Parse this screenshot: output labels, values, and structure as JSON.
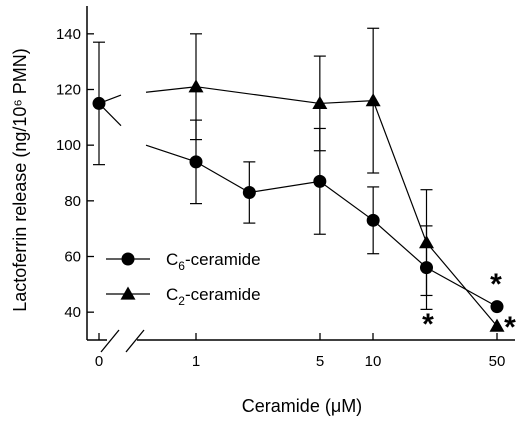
{
  "chart_data": {
    "type": "line",
    "xlabel": "Ceramide (μM)",
    "ylabel": "Lactoferrin release (ng/10⁶ PMN)",
    "x_scale": "broken-log",
    "ylim": [
      30,
      150
    ],
    "x_ticks": [
      "0",
      "1",
      "5",
      "10",
      "50"
    ],
    "y_ticks": [
      40,
      60,
      80,
      100,
      120,
      140
    ],
    "legend_placement": "bottom-left",
    "control": {
      "x": 0,
      "y": 115,
      "err_lo": 93,
      "err_hi": 137
    },
    "series": [
      {
        "name": "C6-ceramide",
        "label_main": "C",
        "label_sub": "6",
        "label_rest": "-ceramide",
        "marker": "circle",
        "points": [
          {
            "x": 1,
            "y": 94,
            "err_lo": 79,
            "err_hi": 109
          },
          {
            "x": 2,
            "y": 83,
            "err_lo": 72,
            "err_hi": 94
          },
          {
            "x": 5,
            "y": 87,
            "err_lo": 68,
            "err_hi": 106
          },
          {
            "x": 10,
            "y": 73,
            "err_lo": 61,
            "err_hi": 85
          },
          {
            "x": 20,
            "y": 56,
            "err_lo": 41,
            "err_hi": 71
          },
          {
            "x": 50,
            "y": 42,
            "err_lo": null,
            "err_hi": null
          }
        ]
      },
      {
        "name": "C2-ceramide",
        "label_main": "C",
        "label_sub": "2",
        "label_rest": "-ceramide",
        "marker": "triangle",
        "points": [
          {
            "x": 1,
            "y": 121,
            "err_lo": 102,
            "err_hi": 140
          },
          {
            "x": 5,
            "y": 115,
            "err_lo": 98,
            "err_hi": 132
          },
          {
            "x": 10,
            "y": 116,
            "err_lo": 90,
            "err_hi": 142
          },
          {
            "x": 20,
            "y": 65,
            "err_lo": 46,
            "err_hi": 84
          },
          {
            "x": 50,
            "y": 35,
            "err_lo": null,
            "err_hi": null
          }
        ]
      }
    ],
    "annotations": [
      {
        "text": "*",
        "series": "C6-ceramide",
        "x": 50
      },
      {
        "text": "*",
        "series": "C2-ceramide",
        "x": 50
      },
      {
        "text": "*",
        "series": "C6-ceramide",
        "x": 20
      }
    ]
  }
}
